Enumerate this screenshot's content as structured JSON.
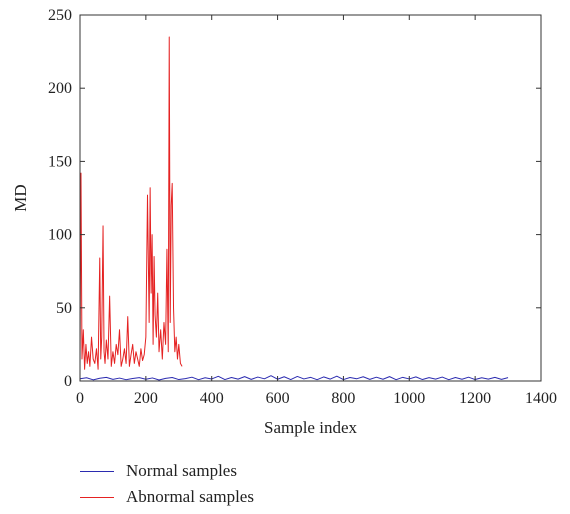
{
  "chart_data": {
    "type": "line",
    "title": "",
    "xlabel": "Sample index",
    "ylabel": "MD",
    "xlim": [
      0,
      1400
    ],
    "ylim": [
      0,
      250
    ],
    "xticks": [
      0,
      200,
      400,
      600,
      800,
      1000,
      1200,
      1400
    ],
    "yticks": [
      0,
      50,
      100,
      150,
      200,
      250
    ],
    "grid": false,
    "legend_position": "bottom-left outside",
    "series": [
      {
        "name": "Normal samples",
        "color": "#2b2bb0",
        "x": [
          0,
          20,
          40,
          60,
          80,
          100,
          120,
          140,
          160,
          180,
          200,
          220,
          240,
          260,
          280,
          300,
          320,
          340,
          360,
          380,
          400,
          420,
          440,
          460,
          480,
          500,
          520,
          540,
          560,
          580,
          600,
          620,
          640,
          660,
          680,
          700,
          720,
          740,
          760,
          780,
          800,
          820,
          840,
          860,
          880,
          900,
          920,
          940,
          960,
          980,
          1000,
          1020,
          1040,
          1060,
          1080,
          1100,
          1120,
          1140,
          1160,
          1180,
          1200,
          1220,
          1240,
          1260,
          1280,
          1300
        ],
        "y": [
          1.5,
          2.2,
          0.8,
          1.9,
          2.5,
          1.1,
          2.0,
          0.9,
          1.7,
          2.3,
          1.2,
          2.1,
          0.7,
          1.8,
          2.4,
          1.0,
          1.6,
          2.6,
          0.9,
          2.2,
          1.4,
          3.2,
          1.0,
          2.4,
          1.3,
          3.0,
          1.1,
          2.7,
          1.5,
          3.6,
          1.2,
          2.9,
          1.0,
          3.1,
          1.4,
          2.5,
          0.9,
          2.8,
          1.3,
          3.3,
          1.0,
          2.4,
          1.5,
          2.9,
          1.1,
          2.6,
          1.2,
          3.0,
          0.9,
          2.5,
          1.4,
          2.8,
          1.0,
          2.3,
          1.3,
          2.7,
          0.9,
          2.4,
          1.2,
          2.6,
          1.0,
          2.2,
          1.3,
          2.5,
          1.1,
          2.3
        ]
      },
      {
        "name": "Abnormal samples",
        "color": "#e52222",
        "x": [
          0,
          3,
          6,
          10,
          14,
          18,
          22,
          26,
          30,
          35,
          40,
          45,
          50,
          55,
          60,
          63,
          66,
          70,
          73,
          76,
          80,
          85,
          90,
          95,
          100,
          105,
          110,
          115,
          120,
          125,
          130,
          135,
          140,
          145,
          150,
          155,
          160,
          165,
          170,
          175,
          180,
          185,
          190,
          195,
          200,
          205,
          210,
          213,
          216,
          219,
          222,
          225,
          228,
          232,
          236,
          240,
          245,
          250,
          255,
          260,
          264,
          268,
          271,
          274,
          277,
          280,
          284,
          288,
          292,
          296,
          300,
          305,
          310
        ],
        "y": [
          10,
          142,
          15,
          35,
          8,
          25,
          12,
          20,
          10,
          30,
          15,
          12,
          22,
          8,
          84,
          15,
          30,
          106,
          20,
          12,
          28,
          15,
          58,
          10,
          20,
          12,
          25,
          18,
          35,
          10,
          15,
          22,
          12,
          44,
          10,
          18,
          25,
          12,
          20,
          15,
          10,
          22,
          14,
          18,
          30,
          127,
          40,
          132,
          60,
          100,
          25,
          85,
          45,
          30,
          60,
          20,
          35,
          15,
          40,
          25,
          90,
          20,
          235,
          40,
          120,
          135,
          50,
          20,
          30,
          15,
          25,
          12,
          10
        ]
      }
    ]
  }
}
